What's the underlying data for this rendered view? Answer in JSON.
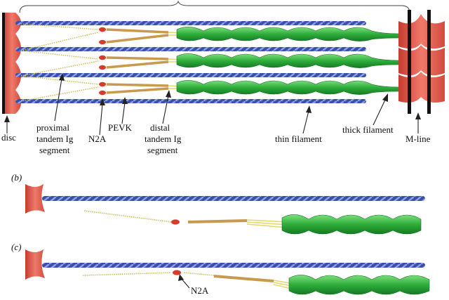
{
  "labels": {
    "disc": "disc",
    "proximal_1": "proximal",
    "proximal_2": "tandem Ig",
    "proximal_3": "segment",
    "n2a": "N2A",
    "pevk": "PEVK",
    "distal_1": "distal",
    "distal_2": "tandem Ig",
    "distal_3": "segment",
    "thin_filament": "thin filament",
    "thick_filament": "thick filament",
    "m_line": "M-line",
    "panel_b": "(b)",
    "panel_c": "(c)",
    "n2a_c": "N2A"
  },
  "colors": {
    "disc": "#e8574a",
    "thin": "#3f57b3",
    "thick": "#2fae3b",
    "titin": "#d8c84a",
    "ig": "#c99a4e",
    "n2a": "#d93b2b"
  }
}
